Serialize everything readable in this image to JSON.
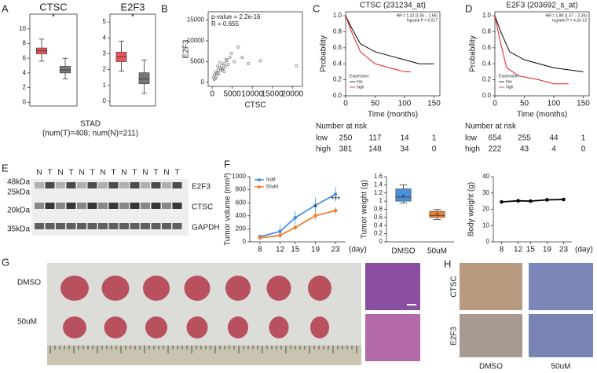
{
  "panel_labels": [
    "A",
    "B",
    "C",
    "D",
    "E",
    "F",
    "G",
    "H"
  ],
  "stad": {
    "title": "STAD",
    "subtitle": "(num(T)=408; num(N)=211)"
  },
  "blot": {
    "lanes": [
      "N",
      "T",
      "N",
      "T",
      "N",
      "T",
      "N",
      "T",
      "N",
      "T",
      "N",
      "T",
      "N",
      "T"
    ],
    "markers": [
      "48kDa",
      "25kDa",
      "20kDa",
      "35kDa"
    ],
    "proteins": [
      "E2F3",
      "CTSC",
      "GAPDH"
    ]
  },
  "tumor_photo": {
    "groups": [
      "DMSO",
      "50uM"
    ]
  },
  "ihc": {
    "rows": [
      "CTSC",
      "E2F3"
    ],
    "columns": [
      "DMSO",
      "50uM"
    ]
  },
  "chart_data": [
    {
      "type": "box",
      "title": "CTSC",
      "frame": true,
      "ylim": [
        -0.5,
        12
      ],
      "yticks": [
        0,
        2,
        4,
        6,
        8,
        10
      ],
      "annotations": [
        "*"
      ],
      "boxes": [
        {
          "color": "#e8545a",
          "min": 5.6,
          "q1": 6.6,
          "median": 7.0,
          "q3": 7.4,
          "max": 8.6
        },
        {
          "color": "#777777",
          "min": 3.2,
          "q1": 4.0,
          "median": 4.4,
          "q3": 4.9,
          "max": 6.0
        }
      ]
    },
    {
      "type": "box",
      "title": "E2F3",
      "frame": true,
      "ylim": [
        -0.3,
        5.5
      ],
      "yticks": [
        0,
        1,
        2,
        3,
        4,
        5
      ],
      "annotations": [
        "*"
      ],
      "boxes": [
        {
          "color": "#e8545a",
          "min": 1.9,
          "q1": 2.5,
          "median": 2.8,
          "q3": 3.1,
          "max": 3.8
        },
        {
          "color": "#777777",
          "min": 0.5,
          "q1": 1.1,
          "median": 1.4,
          "q3": 1.8,
          "max": 2.6
        }
      ]
    },
    {
      "type": "scatter",
      "frame": true,
      "xlabel": "CTSC",
      "ylabel": "E2F3",
      "color": "#777777",
      "annotations": [
        "p-value = 2.2e-16",
        "R = 0.655"
      ],
      "xlim": [
        -1000,
        22500
      ],
      "ylim": [
        -1000,
        17000
      ],
      "xticks": [
        0,
        5000,
        10000,
        15000,
        20000
      ],
      "yticks": [
        0,
        5000,
        10000,
        15000
      ],
      "x": [
        300,
        600,
        900,
        1200,
        1500,
        1800,
        2100,
        2400,
        2700,
        3000,
        3300,
        3600,
        4000,
        4400,
        800,
        1600,
        2500,
        3500,
        4800,
        5500,
        6500,
        7500,
        9000,
        12000,
        21000,
        1000,
        2000,
        3000,
        500,
        1400
      ],
      "values": [
        1200,
        1800,
        2500,
        2200,
        3000,
        3500,
        2800,
        4000,
        3300,
        4500,
        3800,
        5200,
        4300,
        6000,
        900,
        2000,
        3100,
        5500,
        7000,
        5000,
        8500,
        6000,
        4500,
        5200,
        4000,
        1500,
        4800,
        2600,
        700,
        3900
      ]
    },
    {
      "type": "km",
      "frame": true,
      "title": "CTSC (231234_at)",
      "xlabel": "Time (months)",
      "ylabel": "Probability",
      "annotations": [
        "HR = 1.32 (1.05 – 1.66)",
        "logrank P = 0.017"
      ],
      "legend_title": "Expression",
      "xlim": [
        0,
        160
      ],
      "ylim": [
        0,
        1.05
      ],
      "xticks": [
        0,
        50,
        100,
        150
      ],
      "yticks": [
        {
          "value": 0,
          "label": "0.0"
        },
        0.2,
        0.4,
        0.6,
        0.8,
        {
          "value": 1,
          "label": "1.0"
        }
      ],
      "series": [
        {
          "name": "low",
          "color": "#000000",
          "x": [
            0,
            10,
            25,
            50,
            75,
            100,
            125,
            150
          ],
          "values": [
            1,
            0.85,
            0.65,
            0.55,
            0.5,
            0.45,
            0.4,
            0.4
          ]
        },
        {
          "name": "high",
          "color": "#e8191c",
          "x": [
            0,
            10,
            25,
            50,
            75,
            100,
            110
          ],
          "values": [
            1,
            0.8,
            0.55,
            0.4,
            0.35,
            0.3,
            0.3
          ]
        }
      ],
      "risk_table": {
        "title": "Number at risk",
        "rows": [
          {
            "name": "low",
            "color": "#000000",
            "values": [
              250,
              117,
              14,
              1
            ]
          },
          {
            "name": "high",
            "color": "#e8191c",
            "values": [
              381,
              148,
              34,
              0
            ]
          }
        ]
      }
    },
    {
      "type": "km",
      "frame": true,
      "title": "E2F3 (203692_s_at)",
      "xlabel": "Time (months)",
      "ylabel": "Probability",
      "annotations": [
        "HR = 1.88 (1.57 – 2.26)",
        "logrank P = 4.2e-12"
      ],
      "legend_title": "Expression",
      "xlim": [
        0,
        160
      ],
      "ylim": [
        0,
        1.05
      ],
      "xticks": [
        0,
        50,
        100,
        150
      ],
      "yticks": [
        {
          "value": 0,
          "label": "0.0"
        },
        0.2,
        0.4,
        0.6,
        0.8,
        {
          "value": 1,
          "label": "1.0"
        }
      ],
      "series": [
        {
          "name": "low",
          "color": "#000000",
          "x": [
            0,
            10,
            25,
            50,
            75,
            100,
            150
          ],
          "values": [
            1,
            0.8,
            0.55,
            0.45,
            0.4,
            0.35,
            0.3
          ]
        },
        {
          "name": "high",
          "color": "#e8191c",
          "x": [
            0,
            10,
            20,
            40,
            75,
            100,
            125
          ],
          "values": [
            1,
            0.65,
            0.35,
            0.25,
            0.2,
            0.15,
            0.15
          ]
        }
      ],
      "risk_table": {
        "title": "Number at risk",
        "rows": [
          {
            "name": "low",
            "color": "#000000",
            "values": [
              654,
              255,
              44,
              1
            ]
          },
          {
            "name": "high",
            "color": "#e8191c",
            "values": [
              222,
              43,
              4,
              0
            ]
          }
        ]
      }
    },
    {
      "type": "line",
      "ylabel": "Tumor volume (mm³)",
      "xlabel": "(day)",
      "annotations": [
        "*",
        "***"
      ],
      "x": [
        8,
        12,
        15,
        19,
        23
      ],
      "xlim": [
        6,
        25
      ],
      "xticks": [
        8,
        12,
        15,
        19,
        23
      ],
      "ylim": [
        0,
        1000
      ],
      "yticks": [
        0,
        200,
        400,
        600,
        800,
        1000
      ],
      "series": [
        {
          "name": "0uM",
          "color": "#4a90d9",
          "values": [
            80,
            160,
            370,
            560,
            730
          ],
          "errors": [
            20,
            100,
            100,
            120,
            110
          ]
        },
        {
          "name": "50uM",
          "color": "#f08030",
          "values": [
            60,
            100,
            220,
            400,
            480
          ],
          "errors": [
            10,
            30,
            40,
            60,
            50
          ]
        }
      ]
    },
    {
      "type": "box",
      "ylabel": "Tumor weight (g)",
      "categories": [
        "DMSO",
        "50uM"
      ],
      "ylim": [
        0,
        1.6
      ],
      "yticks": [
        0,
        0.2,
        0.4,
        0.6,
        0.8,
        1,
        1.2,
        1.4,
        1.6
      ],
      "boxes": [
        {
          "color": "#4a90d9",
          "min": 0.95,
          "q1": 1.0,
          "median": 1.1,
          "q3": 1.3,
          "max": 1.4,
          "mean": 1.12
        },
        {
          "color": "#f08030",
          "min": 0.55,
          "q1": 0.6,
          "median": 0.65,
          "q3": 0.75,
          "max": 0.8,
          "mean": 0.67
        }
      ]
    },
    {
      "type": "line",
      "ylabel": "Body weight (g)",
      "xlabel": "(day)",
      "x": [
        8,
        12,
        15,
        19,
        23
      ],
      "xlim": [
        6,
        25
      ],
      "xticks": [
        8,
        12,
        15,
        19,
        23
      ],
      "ylim": [
        0,
        40
      ],
      "yticks": [
        0,
        10,
        20,
        30,
        40
      ],
      "series": [
        {
          "color": "#000000",
          "values": [
            24.5,
            25.2,
            25,
            25.8,
            26
          ],
          "errors": [
            0.5,
            0.6,
            0.5,
            0.6,
            0.5
          ]
        }
      ]
    }
  ]
}
